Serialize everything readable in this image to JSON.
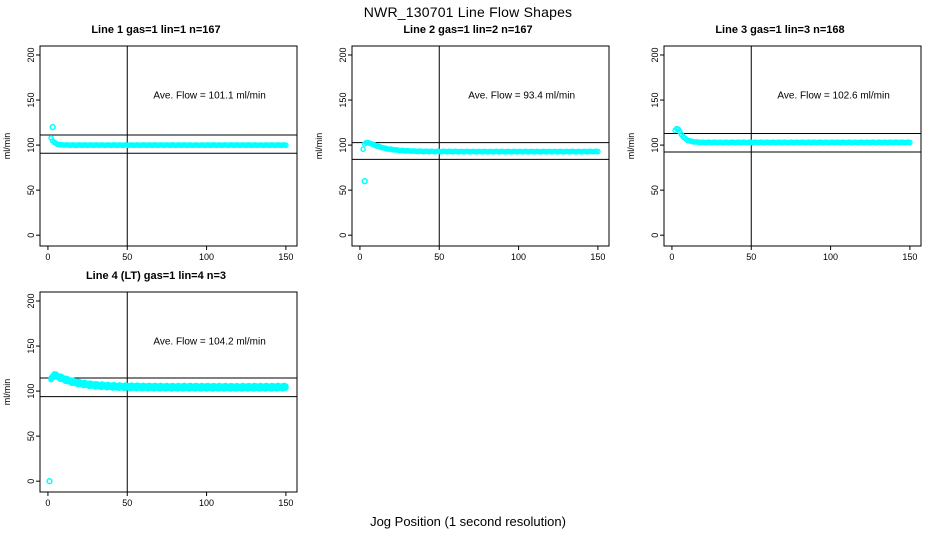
{
  "figure": {
    "title": "NWR_130701  Line Flow Shapes",
    "xlabel": "Jog Position (1 second resolution)",
    "point_color": "#00ffff",
    "line_color": "#000000",
    "background": "#ffffff"
  },
  "chart_data": [
    {
      "type": "scatter",
      "title": "Line 1 gas=1 lin=1 n=167",
      "annotation": "Ave. Flow =  101.1  ml/min",
      "ave_flow": 101.1,
      "ylabel": "ml/min",
      "xlim": [
        -5,
        157
      ],
      "ylim": [
        -12,
        210
      ],
      "xticks": [
        0,
        50,
        100,
        150
      ],
      "yticks": [
        0,
        50,
        100,
        150,
        200
      ],
      "vline_x": 50,
      "hlines": [
        111.2,
        91.0
      ],
      "traces": 1,
      "noise": 0.25,
      "points": [
        [
          2,
          108
        ],
        [
          3,
          104.9
        ],
        [
          4,
          102.9
        ],
        [
          5,
          101.8
        ],
        [
          6,
          101.1
        ],
        [
          7,
          100.7
        ],
        [
          8,
          100.4
        ],
        [
          10,
          100.2
        ],
        [
          12,
          100.1
        ],
        [
          15,
          100
        ],
        [
          25,
          100
        ],
        [
          35,
          100
        ],
        [
          50,
          100
        ],
        [
          65,
          100
        ],
        [
          80,
          100
        ],
        [
          95,
          100
        ],
        [
          110,
          100
        ],
        [
          125,
          100
        ],
        [
          140,
          100
        ],
        [
          150,
          100
        ]
      ],
      "outliers": [
        [
          3,
          120
        ]
      ]
    },
    {
      "type": "scatter",
      "title": "Line 2 gas=1 lin=2 n=167",
      "annotation": "Ave. Flow =  93.4  ml/min",
      "ave_flow": 93.4,
      "ylabel": "ml/min",
      "xlim": [
        -5,
        157
      ],
      "ylim": [
        -12,
        210
      ],
      "xticks": [
        0,
        50,
        100,
        150
      ],
      "yticks": [
        0,
        50,
        100,
        150,
        200
      ],
      "vline_x": 50,
      "hlines": [
        102.7,
        84.1
      ],
      "traces": 1,
      "noise": 0.25,
      "points": [
        [
          2,
          95.5
        ],
        [
          3,
          101.5
        ],
        [
          4,
          102.6
        ],
        [
          5,
          102.8
        ],
        [
          6,
          102.3
        ],
        [
          7,
          101.6
        ],
        [
          8,
          100.9
        ],
        [
          10,
          99.5
        ],
        [
          12,
          98.3
        ],
        [
          15,
          96.8
        ],
        [
          18,
          95.7
        ],
        [
          22,
          94.7
        ],
        [
          26,
          94.0
        ],
        [
          30,
          93.6
        ],
        [
          35,
          93.2
        ],
        [
          40,
          93.0
        ],
        [
          50,
          92.9
        ],
        [
          65,
          92.8
        ],
        [
          80,
          92.8
        ],
        [
          95,
          92.8
        ],
        [
          110,
          92.8
        ],
        [
          125,
          92.8
        ],
        [
          140,
          92.8
        ],
        [
          150,
          92.9
        ]
      ],
      "outliers": [
        [
          3,
          60
        ]
      ]
    },
    {
      "type": "scatter",
      "title": "Line 3 gas=1 lin=3 n=168",
      "annotation": "Ave. Flow =  102.6  ml/min",
      "ave_flow": 102.6,
      "ylabel": "ml/min",
      "xlim": [
        -5,
        157
      ],
      "ylim": [
        -12,
        210
      ],
      "xticks": [
        0,
        50,
        100,
        150
      ],
      "yticks": [
        0,
        50,
        100,
        150,
        200
      ],
      "vline_x": 50,
      "hlines": [
        112.9,
        92.3
      ],
      "traces": 1,
      "noise": 0.25,
      "points": [
        [
          2,
          116.5
        ],
        [
          3,
          118.5
        ],
        [
          4,
          117.5
        ],
        [
          5,
          114.5
        ],
        [
          6,
          111.8
        ],
        [
          7,
          109.6
        ],
        [
          8,
          107.8
        ],
        [
          9,
          106.4
        ],
        [
          10,
          105.3
        ],
        [
          12,
          104.2
        ],
        [
          14,
          103.6
        ],
        [
          17,
          103.2
        ],
        [
          20,
          103
        ],
        [
          30,
          103
        ],
        [
          45,
          103
        ],
        [
          60,
          103
        ],
        [
          75,
          103
        ],
        [
          90,
          103
        ],
        [
          105,
          103
        ],
        [
          120,
          103
        ],
        [
          135,
          103
        ],
        [
          150,
          103
        ]
      ],
      "outliers": []
    },
    {
      "type": "scatter",
      "title": "Line 4 (LT) gas=1 lin=4 n=3",
      "annotation": "Ave. Flow =  104.2  ml/min",
      "ave_flow": 104.2,
      "ylabel": "ml/min",
      "xlim": [
        -5,
        157
      ],
      "ylim": [
        -12,
        210
      ],
      "xticks": [
        0,
        50,
        100,
        150
      ],
      "yticks": [
        0,
        50,
        100,
        150,
        200
      ],
      "vline_x": 50,
      "hlines": [
        114.6,
        93.8
      ],
      "traces": 3,
      "noise": 0.55,
      "points": [
        [
          2,
          113.5
        ],
        [
          3,
          116
        ],
        [
          4,
          117.5
        ],
        [
          5,
          117.2
        ],
        [
          6,
          116.4
        ],
        [
          8,
          114.8
        ],
        [
          10,
          113.4
        ],
        [
          12,
          112.2
        ],
        [
          15,
          110.6
        ],
        [
          18,
          109.4
        ],
        [
          22,
          108.2
        ],
        [
          26,
          107.2
        ],
        [
          30,
          106.4
        ],
        [
          35,
          105.8
        ],
        [
          40,
          105.3
        ],
        [
          45,
          105
        ],
        [
          50,
          104.8
        ],
        [
          60,
          104.6
        ],
        [
          70,
          104.4
        ],
        [
          80,
          104.3
        ],
        [
          90,
          104.4
        ],
        [
          100,
          104.3
        ],
        [
          110,
          104.3
        ],
        [
          120,
          104.2
        ],
        [
          130,
          104.3
        ],
        [
          140,
          104.3
        ],
        [
          150,
          104.5
        ]
      ],
      "outliers": [
        [
          1,
          0
        ]
      ]
    }
  ]
}
